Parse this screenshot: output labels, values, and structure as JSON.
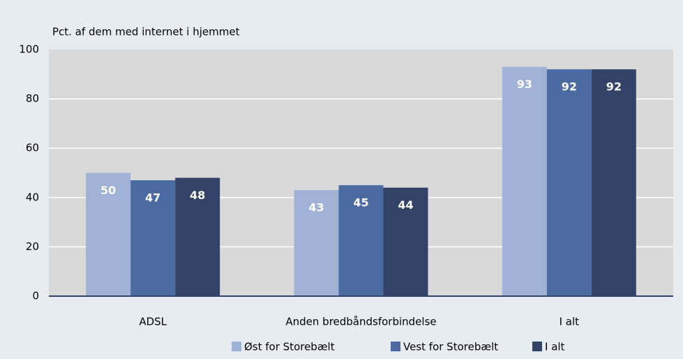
{
  "chart_data": {
    "type": "bar",
    "ylabel": "Pct. af dem med internet i hjemmet",
    "categories": [
      "ADSL",
      "Anden bredbåndsforbindelse",
      "I alt"
    ],
    "series": [
      {
        "name": "Øst for Storebælt",
        "color": "#9fb2d6",
        "values": [
          50,
          43,
          93
        ]
      },
      {
        "name": "Vest for Storebælt",
        "color": "#4b6aa1",
        "values": [
          47,
          45,
          92
        ]
      },
      {
        "name": "I alt",
        "color": "#334368",
        "values": [
          48,
          44,
          92
        ]
      }
    ],
    "ylim": [
      0,
      100
    ],
    "yticks": [
      0,
      20,
      40,
      60,
      80,
      100
    ],
    "grid": true,
    "legend": "bottom"
  }
}
